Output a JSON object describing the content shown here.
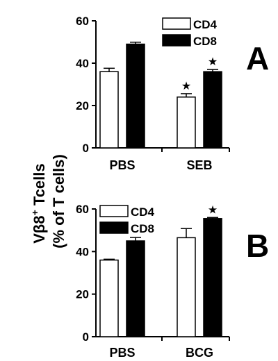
{
  "ylabel_line1": "Vβ8",
  "ylabel_sup": "+",
  "ylabel_line1_rest": " Tcells",
  "ylabel_line2": "(% of T cells)",
  "colors": {
    "cd4": "#ffffff",
    "cd8": "#000000",
    "axis": "#000000"
  },
  "chart_data": [
    {
      "type": "bar",
      "panel": "A",
      "categories": [
        "PBS",
        "SEB"
      ],
      "series": [
        {
          "name": "CD4",
          "values": [
            36,
            24
          ],
          "errors": [
            1.6,
            1.6
          ],
          "stars": [
            false,
            true
          ]
        },
        {
          "name": "CD8",
          "values": [
            49,
            36
          ],
          "errors": [
            0.9,
            1.0
          ],
          "stars": [
            false,
            true
          ]
        }
      ],
      "ylim": [
        0,
        60
      ],
      "yticks": [
        "0",
        "20",
        "40",
        "60"
      ],
      "legend": "top-right"
    },
    {
      "type": "bar",
      "panel": "B",
      "categories": [
        "PBS",
        "BCG"
      ],
      "series": [
        {
          "name": "CD4",
          "values": [
            36,
            46.5
          ],
          "errors": [
            0.4,
            4.3
          ],
          "stars": [
            false,
            false
          ]
        },
        {
          "name": "CD8",
          "values": [
            45,
            55.5
          ],
          "errors": [
            1.6,
            0.5
          ],
          "stars": [
            false,
            true
          ]
        }
      ],
      "ylim": [
        0,
        60
      ],
      "yticks": [
        "0",
        "20",
        "40",
        "60"
      ],
      "legend": "top-left"
    }
  ]
}
